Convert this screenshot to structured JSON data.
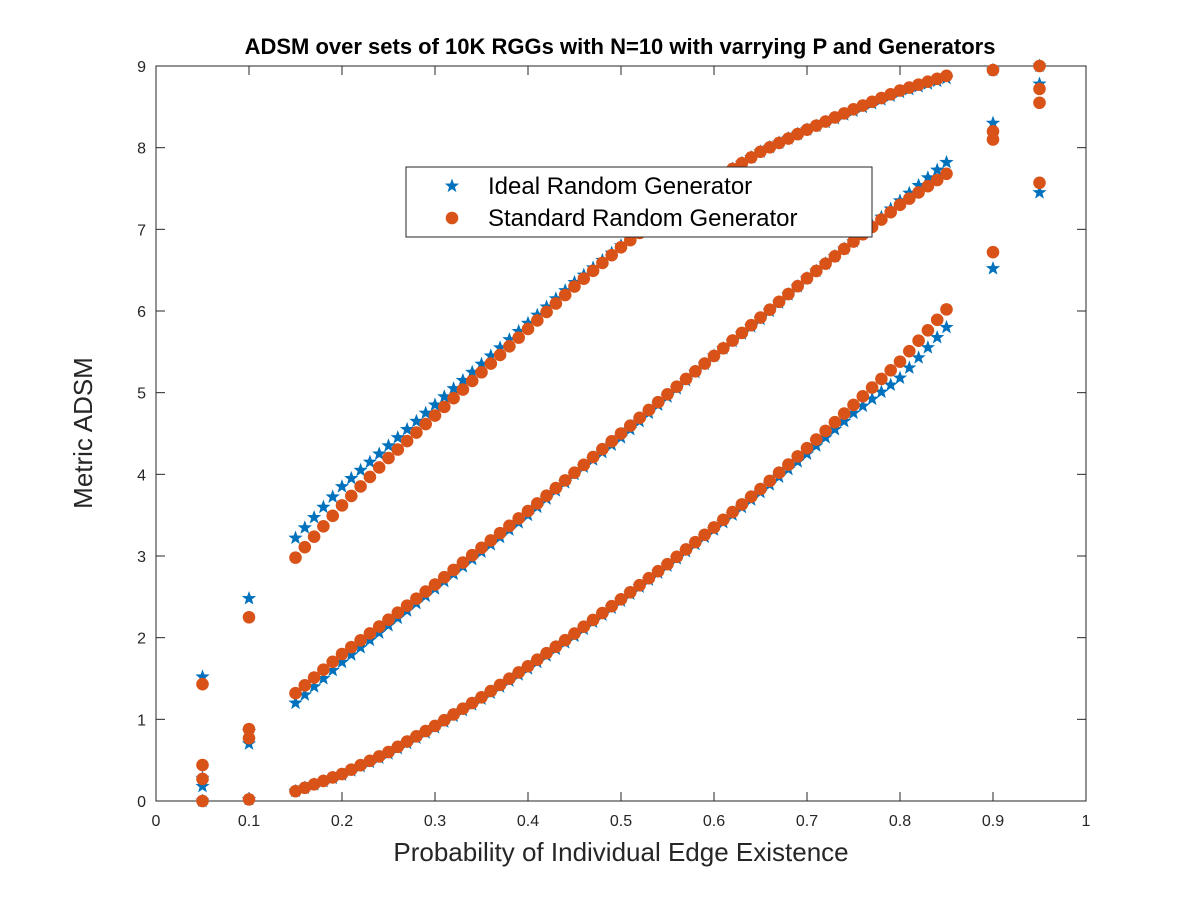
{
  "chart_data": {
    "type": "scatter",
    "title": "ADSM over sets of 10K RGGs with N=10 with varrying P and Generators",
    "xlabel": "Probability of Individual Edge Existence",
    "ylabel": "Metric ADSM",
    "xlim": [
      0,
      1
    ],
    "ylim": [
      0,
      9
    ],
    "xticks": [
      "0",
      "0.1",
      "0.2",
      "0.3",
      "0.4",
      "0.5",
      "0.6",
      "0.7",
      "0.8",
      "0.9",
      "1"
    ],
    "yticks": [
      "0",
      "1",
      "2",
      "3",
      "4",
      "5",
      "6",
      "7",
      "8",
      "9"
    ],
    "grid": false,
    "legend_position": "top-center",
    "series": [
      {
        "name": "Ideal Random Generator",
        "marker": "star",
        "color": "#0072BD",
        "points": [
          [
            0.05,
            1.52
          ],
          [
            0.05,
            0.28
          ],
          [
            0.05,
            0.18
          ],
          [
            0.05,
            0.0
          ],
          [
            0.1,
            2.48
          ],
          [
            0.1,
            0.85
          ],
          [
            0.1,
            0.7
          ],
          [
            0.1,
            0.02
          ],
          [
            0.15,
            3.22
          ],
          [
            0.2,
            3.85
          ],
          [
            0.25,
            4.35
          ],
          [
            0.3,
            4.85
          ],
          [
            0.35,
            5.35
          ],
          [
            0.4,
            5.85
          ],
          [
            0.45,
            6.35
          ],
          [
            0.5,
            6.8
          ],
          [
            0.55,
            7.25
          ],
          [
            0.6,
            7.6
          ],
          [
            0.65,
            7.95
          ],
          [
            0.7,
            8.22
          ],
          [
            0.75,
            8.45
          ],
          [
            0.8,
            8.68
          ],
          [
            0.85,
            8.85
          ],
          [
            0.15,
            1.2
          ],
          [
            0.2,
            1.7
          ],
          [
            0.25,
            2.15
          ],
          [
            0.3,
            2.6
          ],
          [
            0.35,
            3.05
          ],
          [
            0.4,
            3.5
          ],
          [
            0.45,
            4.0
          ],
          [
            0.5,
            4.45
          ],
          [
            0.55,
            4.95
          ],
          [
            0.6,
            5.45
          ],
          [
            0.65,
            5.9
          ],
          [
            0.7,
            6.4
          ],
          [
            0.75,
            6.85
          ],
          [
            0.8,
            7.35
          ],
          [
            0.85,
            7.82
          ],
          [
            0.15,
            0.12
          ],
          [
            0.2,
            0.32
          ],
          [
            0.25,
            0.58
          ],
          [
            0.3,
            0.9
          ],
          [
            0.35,
            1.25
          ],
          [
            0.4,
            1.62
          ],
          [
            0.45,
            2.02
          ],
          [
            0.5,
            2.45
          ],
          [
            0.55,
            2.88
          ],
          [
            0.6,
            3.32
          ],
          [
            0.65,
            3.78
          ],
          [
            0.7,
            4.25
          ],
          [
            0.75,
            4.75
          ],
          [
            0.8,
            5.18
          ],
          [
            0.85,
            5.8
          ],
          [
            0.9,
            8.3
          ],
          [
            0.9,
            6.52
          ],
          [
            0.9,
            8.95
          ],
          [
            0.95,
            8.78
          ],
          [
            0.95,
            7.45
          ],
          [
            0.95,
            9.0
          ]
        ]
      },
      {
        "name": "Standard Random Generator",
        "marker": "circle",
        "color": "#D95319",
        "points": [
          [
            0.05,
            1.43
          ],
          [
            0.05,
            0.44
          ],
          [
            0.05,
            0.27
          ],
          [
            0.05,
            0.0
          ],
          [
            0.1,
            2.25
          ],
          [
            0.1,
            0.88
          ],
          [
            0.1,
            0.77
          ],
          [
            0.1,
            0.02
          ],
          [
            0.15,
            2.98
          ],
          [
            0.2,
            3.62
          ],
          [
            0.25,
            4.2
          ],
          [
            0.3,
            4.72
          ],
          [
            0.35,
            5.25
          ],
          [
            0.4,
            5.78
          ],
          [
            0.45,
            6.3
          ],
          [
            0.5,
            6.78
          ],
          [
            0.55,
            7.22
          ],
          [
            0.6,
            7.6
          ],
          [
            0.65,
            7.95
          ],
          [
            0.7,
            8.22
          ],
          [
            0.75,
            8.47
          ],
          [
            0.8,
            8.7
          ],
          [
            0.85,
            8.88
          ],
          [
            0.15,
            1.32
          ],
          [
            0.2,
            1.8
          ],
          [
            0.25,
            2.22
          ],
          [
            0.3,
            2.65
          ],
          [
            0.35,
            3.1
          ],
          [
            0.4,
            3.55
          ],
          [
            0.45,
            4.02
          ],
          [
            0.5,
            4.5
          ],
          [
            0.55,
            4.98
          ],
          [
            0.6,
            5.45
          ],
          [
            0.65,
            5.92
          ],
          [
            0.7,
            6.4
          ],
          [
            0.75,
            6.85
          ],
          [
            0.8,
            7.3
          ],
          [
            0.85,
            7.68
          ],
          [
            0.15,
            0.12
          ],
          [
            0.2,
            0.33
          ],
          [
            0.25,
            0.6
          ],
          [
            0.3,
            0.92
          ],
          [
            0.35,
            1.27
          ],
          [
            0.4,
            1.65
          ],
          [
            0.45,
            2.05
          ],
          [
            0.5,
            2.47
          ],
          [
            0.55,
            2.9
          ],
          [
            0.6,
            3.35
          ],
          [
            0.65,
            3.82
          ],
          [
            0.7,
            4.32
          ],
          [
            0.75,
            4.85
          ],
          [
            0.8,
            5.38
          ],
          [
            0.85,
            6.02
          ],
          [
            0.9,
            8.2
          ],
          [
            0.9,
            8.1
          ],
          [
            0.9,
            6.72
          ],
          [
            0.9,
            8.95
          ],
          [
            0.95,
            8.72
          ],
          [
            0.95,
            8.55
          ],
          [
            0.95,
            7.57
          ],
          [
            0.95,
            9.0
          ]
        ]
      }
    ]
  }
}
